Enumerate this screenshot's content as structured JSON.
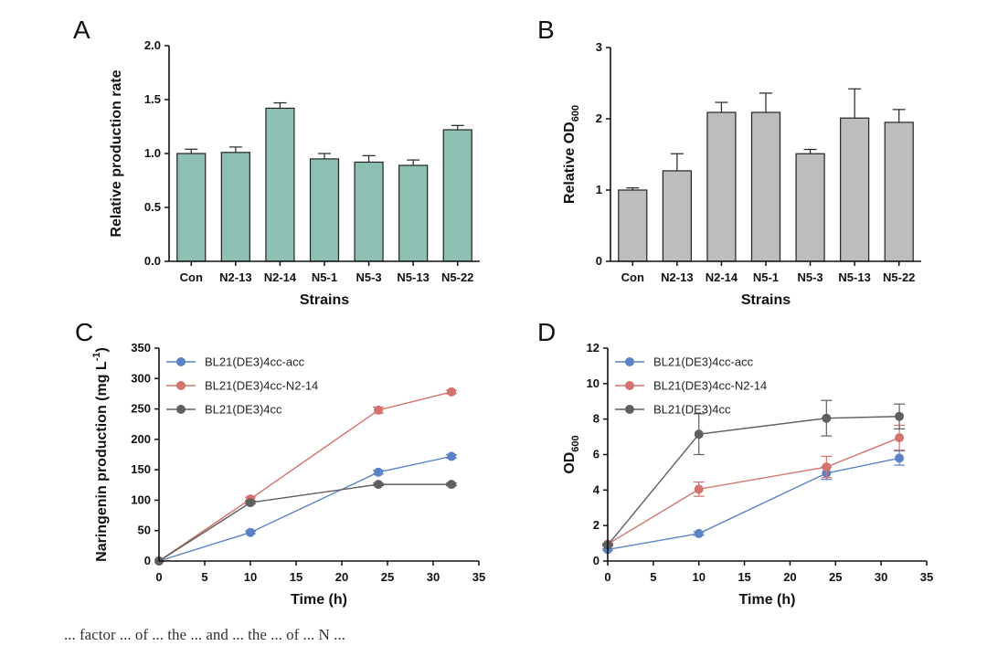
{
  "caption_fragment": "... factor ... of ... the ... and ... the ... of ... N ...",
  "chart_data": [
    {
      "panel": "A",
      "type": "bar",
      "title": "",
      "xlabel": "Strains",
      "ylabel": "Relative production rate",
      "categories": [
        "Con",
        "N2-13",
        "N2-14",
        "N5-1",
        "N5-3",
        "N5-13",
        "N5-22"
      ],
      "values": [
        1.0,
        1.01,
        1.42,
        0.95,
        0.92,
        0.89,
        1.22
      ],
      "errors": [
        0.04,
        0.05,
        0.05,
        0.05,
        0.06,
        0.05,
        0.04
      ],
      "ylim": [
        0,
        2.0
      ],
      "yticks": [
        "0.0",
        "0.5",
        "1.0",
        "1.5",
        "2.0"
      ],
      "bar_color": "#8dbfb3"
    },
    {
      "panel": "B",
      "type": "bar",
      "title": "",
      "xlabel": "Strains",
      "ylabel": "Relative OD",
      "ylabel_sub": "600",
      "categories": [
        "Con",
        "N2-13",
        "N2-14",
        "N5-1",
        "N5-3",
        "N5-13",
        "N5-22"
      ],
      "values": [
        1.0,
        1.27,
        2.09,
        2.09,
        1.51,
        2.01,
        1.95
      ],
      "errors": [
        0.03,
        0.24,
        0.14,
        0.27,
        0.06,
        0.41,
        0.18
      ],
      "ylim": [
        0,
        3
      ],
      "yticks": [
        "0",
        "1",
        "2",
        "3"
      ],
      "bar_color": "#bdbdbd"
    },
    {
      "panel": "C",
      "type": "line",
      "title": "",
      "xlabel": "Time (h)",
      "ylabel": "Naringenin production (mg L",
      "ylabel_sup": "-1",
      "ylabel_end": ")",
      "x": [
        0,
        10,
        24,
        32
      ],
      "xlim": [
        0,
        35
      ],
      "ylim": [
        0,
        350
      ],
      "xticks": [
        "0",
        "5",
        "10",
        "15",
        "20",
        "25",
        "30",
        "35"
      ],
      "yticks": [
        "0",
        "50",
        "100",
        "150",
        "200",
        "250",
        "300",
        "350"
      ],
      "legend": "top-left",
      "series": [
        {
          "name": "BL21(DE3)4cc-acc",
          "values": [
            0,
            47,
            146,
            172
          ],
          "errors": [
            0,
            2,
            3,
            3
          ],
          "color": "#5b82c5"
        },
        {
          "name": "BL21(DE3)4cc-N2-14",
          "values": [
            0,
            102,
            248,
            278
          ],
          "errors": [
            0,
            3,
            5,
            3
          ],
          "color": "#d4726d"
        },
        {
          "name": "BL21(DE3)4cc",
          "values": [
            0,
            96,
            126,
            126
          ],
          "errors": [
            0,
            2,
            2,
            2
          ],
          "color": "#5f5f5f"
        }
      ]
    },
    {
      "panel": "D",
      "type": "line",
      "title": "",
      "xlabel": "Time (h)",
      "ylabel": "OD",
      "ylabel_sub": "600",
      "x": [
        0,
        10,
        24,
        32
      ],
      "xlim": [
        0,
        35
      ],
      "ylim": [
        0,
        12
      ],
      "xticks": [
        "0",
        "5",
        "10",
        "15",
        "20",
        "25",
        "30",
        "35"
      ],
      "yticks": [
        "0",
        "2",
        "4",
        "6",
        "8",
        "10",
        "12"
      ],
      "legend": "top-left",
      "series": [
        {
          "name": "BL21(DE3)4cc-acc",
          "values": [
            0.65,
            1.55,
            4.95,
            5.8
          ],
          "errors": [
            0.05,
            0.1,
            0.35,
            0.4
          ],
          "color": "#5b82c5"
        },
        {
          "name": "BL21(DE3)4cc-N2-14",
          "values": [
            0.95,
            4.05,
            5.3,
            6.95
          ],
          "errors": [
            0.05,
            0.4,
            0.6,
            0.7
          ],
          "color": "#d4726d"
        },
        {
          "name": "BL21(DE3)4cc",
          "values": [
            0.9,
            7.15,
            8.05,
            8.15
          ],
          "errors": [
            0.05,
            1.15,
            1.0,
            0.7
          ],
          "color": "#5f5f5f"
        }
      ]
    }
  ]
}
